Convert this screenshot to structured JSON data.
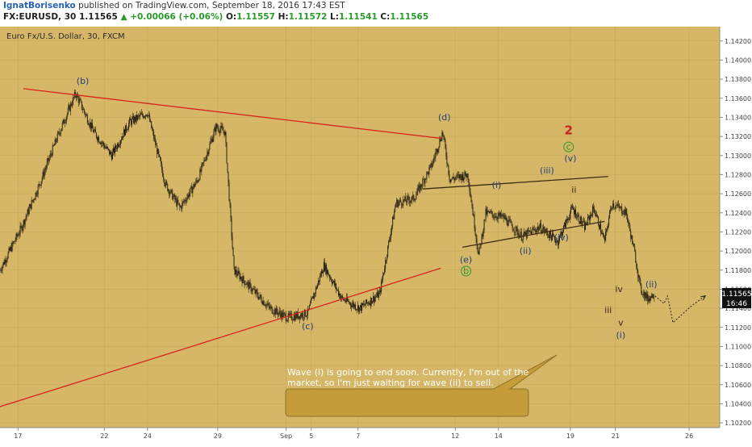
{
  "header": {
    "author": "IgnatBorisenko",
    "published": "published on TradingView.com, September 18, 2016 17:43 EST",
    "symbol": "FX:EURUSD, 30",
    "last": "1.11565",
    "change": "+0.00066 (+0.06%)",
    "o_label": "O:",
    "o": "1.11557",
    "h_label": "H:",
    "h": "1.11572",
    "l_label": "L:",
    "l": "1.11541",
    "c_label": "C:",
    "c": "1.11565"
  },
  "chart_data": {
    "type": "candlestick",
    "title": "Euro Fx/U.S. Dollar, 30, FXCM",
    "y_ticks": [
      "1.14200",
      "1.14000",
      "1.13800",
      "1.13600",
      "1.13400",
      "1.13200",
      "1.13000",
      "1.12800",
      "1.12600",
      "1.12400",
      "1.12200",
      "1.12000",
      "1.11800",
      "1.11600",
      "1.11400",
      "1.11200",
      "1.11000",
      "1.10800",
      "1.10600",
      "1.10400",
      "1.10200"
    ],
    "ylim": [
      1.1015,
      1.1435
    ],
    "x_ticks": [
      "17",
      "22",
      "24",
      "29",
      "Sep",
      "5",
      "7",
      "12",
      "14",
      "19",
      "21",
      "26"
    ],
    "price_path": [
      [
        0,
        1.118
      ],
      [
        1.2,
        1.1225
      ],
      [
        2.2,
        1.127
      ],
      [
        3.2,
        1.132
      ],
      [
        4.2,
        1.1365
      ],
      [
        5.2,
        1.1325
      ],
      [
        6.2,
        1.13
      ],
      [
        7.2,
        1.1335
      ],
      [
        8.2,
        1.1345
      ],
      [
        9.2,
        1.127
      ],
      [
        10,
        1.1245
      ],
      [
        11,
        1.1275
      ],
      [
        12,
        1.133
      ],
      [
        12.5,
        1.1325
      ],
      [
        13,
        1.118
      ],
      [
        14,
        1.116
      ],
      [
        15,
        1.114
      ],
      [
        16,
        1.113
      ],
      [
        17.1,
        1.1135
      ],
      [
        18,
        1.1185
      ],
      [
        19,
        1.115
      ],
      [
        20,
        1.114
      ],
      [
        21.1,
        1.1155
      ],
      [
        22,
        1.125
      ],
      [
        23,
        1.1255
      ],
      [
        24,
        1.129
      ],
      [
        24.6,
        1.1325
      ],
      [
        25,
        1.1275
      ],
      [
        26,
        1.128
      ],
      [
        26.6,
        1.1195
      ],
      [
        27,
        1.124
      ],
      [
        28,
        1.1235
      ],
      [
        29,
        1.1215
      ],
      [
        30,
        1.1225
      ],
      [
        31,
        1.121
      ],
      [
        31.8,
        1.1245
      ],
      [
        32.5,
        1.1225
      ],
      [
        33,
        1.1245
      ],
      [
        33.6,
        1.121
      ],
      [
        34,
        1.125
      ],
      [
        34.8,
        1.124
      ],
      [
        35.3,
        1.1195
      ],
      [
        35.6,
        1.116
      ],
      [
        36,
        1.115
      ],
      [
        36.4,
        1.1156
      ]
    ],
    "projection": [
      [
        36.4,
        1.1153
      ],
      [
        36.9,
        1.1145
      ],
      [
        37.1,
        1.1153
      ],
      [
        37.4,
        1.1125
      ],
      [
        38.4,
        1.1142
      ],
      [
        39.2,
        1.1153
      ]
    ],
    "trendlines": [
      {
        "name": "upper",
        "x1": 1.3,
        "y1": 1.137,
        "x2": 24.5,
        "y2": 1.1318,
        "color": "#d8241c"
      },
      {
        "name": "lower",
        "x1": 0,
        "y1": 1.1037,
        "x2": 24.5,
        "y2": 1.1182,
        "color": "#d8241c"
      },
      {
        "name": "wave-channel-upper",
        "x1": 23.5,
        "y1": 1.1265,
        "x2": 33.8,
        "y2": 1.1278,
        "color": "#3d2a14"
      },
      {
        "name": "wave-channel-lower",
        "x1": 25.7,
        "y1": 1.1204,
        "x2": 33.6,
        "y2": 1.1231,
        "color": "#3d2a14"
      }
    ],
    "wave_labels": [
      {
        "text": "(b)",
        "x": 4.6,
        "y": 1.1375,
        "color": "#1f3f80"
      },
      {
        "text": "(c)",
        "x": 17.1,
        "y": 1.1118,
        "color": "#1f3f80"
      },
      {
        "text": "(d)",
        "x": 24.7,
        "y": 1.1337,
        "color": "#1f3f80"
      },
      {
        "text": "(e)",
        "x": 25.9,
        "y": 1.1188,
        "color": "#1f3f80"
      },
      {
        "text": "b",
        "x": 25.9,
        "y": 1.1176,
        "color": "#2a9a2a",
        "circle": true
      },
      {
        "text": "(i)",
        "x": 27.6,
        "y": 1.1266,
        "color": "#1f3f80"
      },
      {
        "text": "(ii)",
        "x": 29.2,
        "y": 1.1197,
        "color": "#1f3f80"
      },
      {
        "text": "(iii)",
        "x": 30.4,
        "y": 1.1281,
        "color": "#1f3f80"
      },
      {
        "text": "(iv)",
        "x": 31.2,
        "y": 1.1211,
        "color": "#1f3f80"
      },
      {
        "text": "(v)",
        "x": 31.7,
        "y": 1.1294,
        "color": "#1f3f80"
      },
      {
        "text": "c",
        "x": 31.6,
        "y": 1.1306,
        "color": "#2a9a2a",
        "circle": true
      },
      {
        "text": "2",
        "x": 31.6,
        "y": 1.1322,
        "color": "#c0241c",
        "big": true
      },
      {
        "text": "ii",
        "x": 31.9,
        "y": 1.1261,
        "color": "#3d2a14"
      },
      {
        "text": "i",
        "x": 31.7,
        "y": 1.1233,
        "color": "#3d2a14"
      },
      {
        "text": "iv",
        "x": 34.4,
        "y": 1.1157,
        "color": "#3d2a14"
      },
      {
        "text": "iii",
        "x": 33.8,
        "y": 1.1135,
        "color": "#3d2a14"
      },
      {
        "text": "v",
        "x": 34.5,
        "y": 1.1122,
        "color": "#3d2a14"
      },
      {
        "text": "(i)",
        "x": 34.5,
        "y": 1.1109,
        "color": "#1f3f80"
      },
      {
        "text": "(ii)",
        "x": 36.2,
        "y": 1.1162,
        "color": "#1f3f80"
      }
    ],
    "last_price": "1.11565",
    "countdown": "16:46",
    "annotation": "Wave (i) is going to end soon. Currently, I'm out of the market, so I'm just waiting for wave (ii) to sell."
  },
  "colors": {
    "plot_bg": "#d6b767",
    "grid": "#c5a957",
    "candle": "#2b2416",
    "trend_red": "#d8241c",
    "note_bg": "#c49d3a"
  }
}
